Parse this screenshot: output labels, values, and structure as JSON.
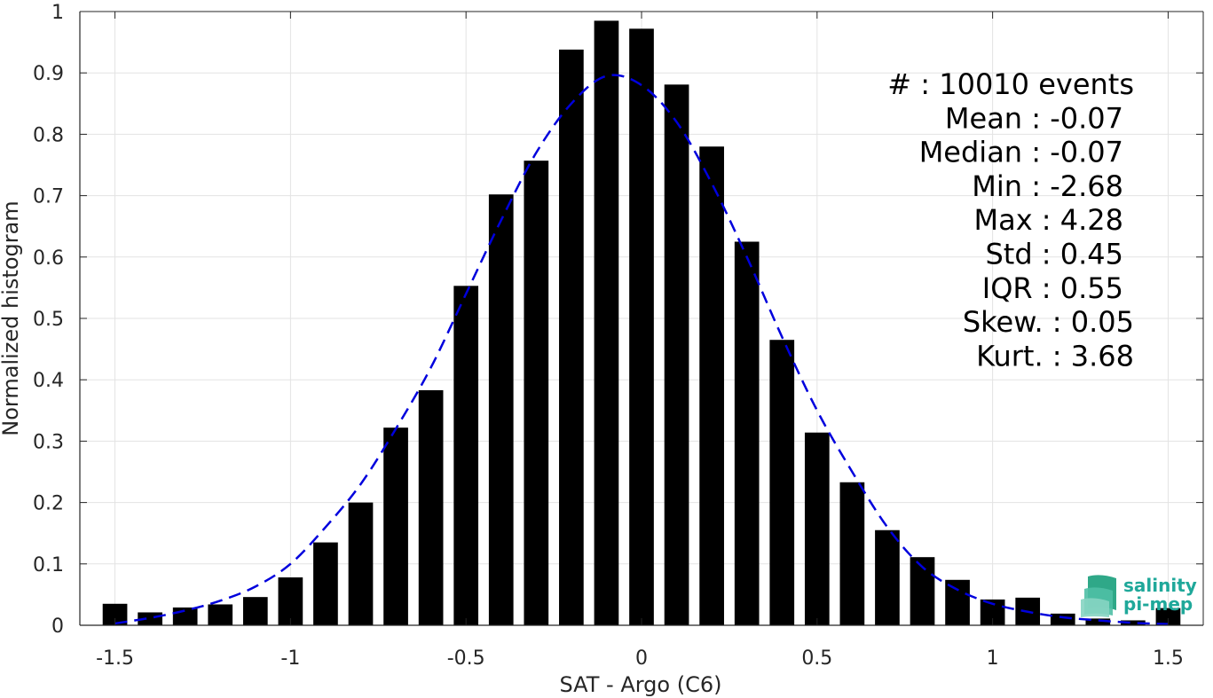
{
  "chart_data": {
    "type": "bar",
    "xlabel": "SAT - Argo (C6)",
    "ylabel": "Normalized histogram",
    "xlim": [
      -1.6,
      1.6
    ],
    "ylim": [
      0,
      1
    ],
    "grid": true,
    "x_ticks": [
      {
        "value": -1.5,
        "label": "-1.5"
      },
      {
        "value": -1,
        "label": "-1"
      },
      {
        "value": -0.5,
        "label": "-0.5"
      },
      {
        "value": 0,
        "label": "0"
      },
      {
        "value": 0.5,
        "label": "0.5"
      },
      {
        "value": 1,
        "label": "1"
      },
      {
        "value": 1.5,
        "label": "1.5"
      }
    ],
    "y_ticks": [
      {
        "value": 0,
        "label": "0"
      },
      {
        "value": 0.1,
        "label": "0.1"
      },
      {
        "value": 0.2,
        "label": "0.2"
      },
      {
        "value": 0.3,
        "label": "0.3"
      },
      {
        "value": 0.4,
        "label": "0.4"
      },
      {
        "value": 0.5,
        "label": "0.5"
      },
      {
        "value": 0.6,
        "label": "0.6"
      },
      {
        "value": 0.7,
        "label": "0.7"
      },
      {
        "value": 0.8,
        "label": "0.8"
      },
      {
        "value": 0.9,
        "label": "0.9"
      },
      {
        "value": 1,
        "label": "1"
      }
    ],
    "bar_width": 0.07,
    "bar_color": "#000000",
    "x": [
      -1.5,
      -1.4,
      -1.3,
      -1.2,
      -1.1,
      -1.0,
      -0.9,
      -0.8,
      -0.7,
      -0.6,
      -0.5,
      -0.4,
      -0.3,
      -0.2,
      -0.1,
      0.0,
      0.1,
      0.2,
      0.3,
      0.4,
      0.5,
      0.6,
      0.7,
      0.8,
      0.9,
      1.0,
      1.1,
      1.2,
      1.3,
      1.4,
      1.5
    ],
    "values": [
      0.035,
      0.021,
      0.029,
      0.034,
      0.046,
      0.078,
      0.135,
      0.2,
      0.322,
      0.383,
      0.553,
      0.702,
      0.757,
      0.938,
      0.985,
      0.972,
      0.881,
      0.78,
      0.625,
      0.465,
      0.314,
      0.233,
      0.155,
      0.111,
      0.074,
      0.042,
      0.045,
      0.019,
      0.011,
      0.008,
      0.028
    ],
    "fit_curve": {
      "style": "dashed",
      "color": "#0000dd",
      "x": [
        -1.5,
        -1.4,
        -1.3,
        -1.2,
        -1.1,
        -1.0,
        -0.9,
        -0.8,
        -0.7,
        -0.6,
        -0.5,
        -0.4,
        -0.3,
        -0.2,
        -0.1,
        0.0,
        0.1,
        0.2,
        0.3,
        0.4,
        0.5,
        0.6,
        0.7,
        0.8,
        0.9,
        1.0,
        1.1,
        1.2,
        1.3,
        1.4,
        1.5
      ],
      "y": [
        0.003,
        0.012,
        0.024,
        0.04,
        0.063,
        0.1,
        0.16,
        0.23,
        0.32,
        0.42,
        0.54,
        0.66,
        0.77,
        0.85,
        0.895,
        0.88,
        0.82,
        0.72,
        0.6,
        0.47,
        0.35,
        0.25,
        0.16,
        0.095,
        0.058,
        0.035,
        0.022,
        0.013,
        0.008,
        0.004,
        0.002
      ]
    },
    "stats": [
      "#  : 10010 events",
      "Mean : -0.07",
      "Median : -0.07",
      "Min : -2.68",
      "Max : 4.28",
      "Std : 0.45",
      "IQR : 0.55",
      "Skew. : 0.05",
      "Kurt. : 3.68"
    ]
  },
  "logo": {
    "line1": "salinity",
    "line2": "pi-mep",
    "color": "#1fa89a"
  }
}
